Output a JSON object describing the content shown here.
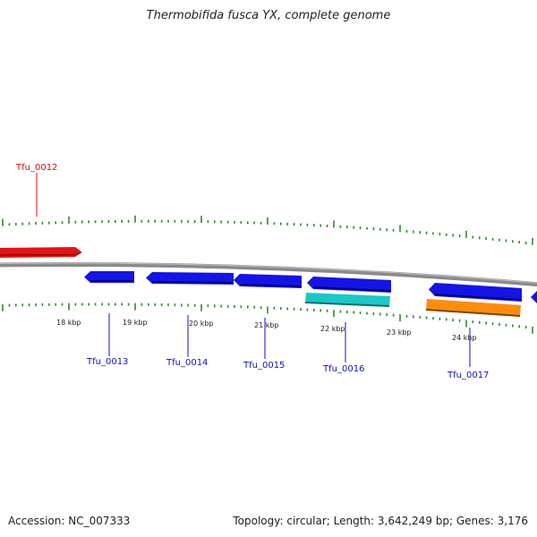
{
  "title": "Thermobifida fusca YX, complete genome",
  "footer": {
    "accession": "Accession: NC_007333",
    "topology": "Topology: circular; Length: 3,642,249 bp; Genes: 3,176"
  },
  "colors": {
    "backbone": "#8c8c8c",
    "ticks": "#2e8b2e",
    "forward_gene": "#e01010",
    "reverse_gene": "#1414e6",
    "rna_cyan": "#19c8c8",
    "rna_orange": "#ff8c0a",
    "forward_label": "#d01010",
    "reverse_label": "#1010c0"
  },
  "scale_labels": [
    "18 kbp",
    "19 kbp",
    "20 kbp",
    "21 kbp",
    "22 kbp",
    "23 kbp",
    "24 kbp"
  ],
  "genes": [
    {
      "id": "Tfu_0012",
      "strand": "forward",
      "color": "red"
    },
    {
      "id": "Tfu_0013",
      "strand": "reverse",
      "color": "blue"
    },
    {
      "id": "Tfu_0014",
      "strand": "reverse",
      "color": "blue"
    },
    {
      "id": "Tfu_0015",
      "strand": "reverse",
      "color": "blue"
    },
    {
      "id": "Tfu_0016",
      "strand": "reverse",
      "color": "blue"
    },
    {
      "id": "Tfu_0017",
      "strand": "reverse",
      "color": "blue"
    }
  ]
}
